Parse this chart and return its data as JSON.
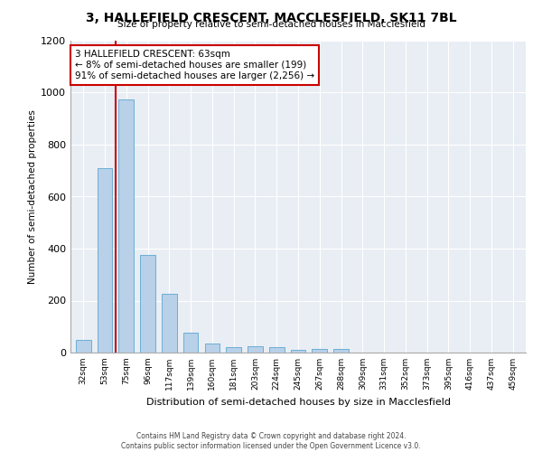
{
  "title": "3, HALLEFIELD CRESCENT, MACCLESFIELD, SK11 7BL",
  "subtitle": "Size of property relative to semi-detached houses in Macclesfield",
  "xlabel": "Distribution of semi-detached houses by size in Macclesfield",
  "ylabel": "Number of semi-detached properties",
  "footer1": "Contains HM Land Registry data © Crown copyright and database right 2024.",
  "footer2": "Contains public sector information licensed under the Open Government Licence v3.0.",
  "categories": [
    "32sqm",
    "53sqm",
    "75sqm",
    "96sqm",
    "117sqm",
    "139sqm",
    "160sqm",
    "181sqm",
    "203sqm",
    "224sqm",
    "245sqm",
    "267sqm",
    "288sqm",
    "309sqm",
    "331sqm",
    "352sqm",
    "373sqm",
    "395sqm",
    "416sqm",
    "437sqm",
    "459sqm"
  ],
  "values": [
    50,
    710,
    975,
    375,
    225,
    75,
    35,
    20,
    25,
    20,
    10,
    15,
    15,
    0,
    0,
    0,
    0,
    0,
    0,
    0,
    0
  ],
  "bar_color": "#b8d0e8",
  "bar_edge_color": "#6baed6",
  "ylim": [
    0,
    1200
  ],
  "yticks": [
    0,
    200,
    400,
    600,
    800,
    1000,
    1200
  ],
  "property_line_x": 1.5,
  "property_line_color": "#cc0000",
  "annotation_text": "3 HALLEFIELD CRESCENT: 63sqm\n← 8% of semi-detached houses are smaller (199)\n91% of semi-detached houses are larger (2,256) →",
  "annotation_box_color": "#cc0000",
  "bg_color": "#e8eef4"
}
